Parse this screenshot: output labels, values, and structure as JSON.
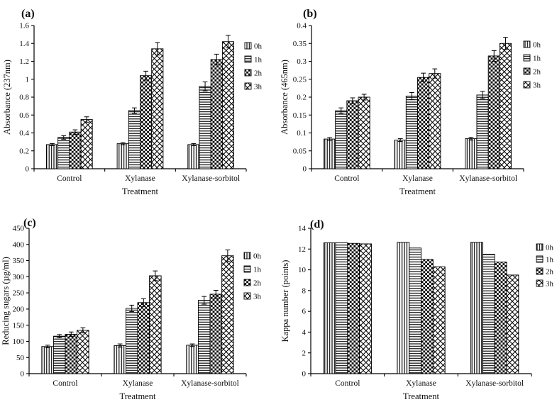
{
  "figure": {
    "background": "#ffffff",
    "text_color": "#0e0e0e",
    "bar_fill": "#ffffff",
    "bar_stroke": "#000000"
  },
  "chart_data": [
    {
      "type": "bar",
      "panel_label": "(a)",
      "xlabel": "Treatment",
      "ylabel": "Absorbance (237nm)",
      "ylim": [
        0,
        1.6
      ],
      "ytick_step": 0.2,
      "grid": false,
      "legend_position": "right",
      "error_bars": true,
      "categories": [
        "Control",
        "Xylanase",
        "Xylanase-sorbitol"
      ],
      "series": [
        {
          "name": "0h",
          "pattern": "vertical-stripes",
          "values": [
            0.27,
            0.28,
            0.27
          ],
          "errors": [
            0.012,
            0.012,
            0.012
          ]
        },
        {
          "name": "1h",
          "pattern": "horizontal-stripes",
          "values": [
            0.35,
            0.65,
            0.92
          ],
          "errors": [
            0.02,
            0.03,
            0.05
          ]
        },
        {
          "name": "2h",
          "pattern": "checkerboard",
          "values": [
            0.41,
            1.04,
            1.22
          ],
          "errors": [
            0.025,
            0.05,
            0.06
          ]
        },
        {
          "name": "3h",
          "pattern": "diagonal-crosshatch",
          "values": [
            0.55,
            1.34,
            1.42
          ],
          "errors": [
            0.03,
            0.07,
            0.07
          ]
        }
      ]
    },
    {
      "type": "bar",
      "panel_label": "(b)",
      "xlabel": "Treatment",
      "ylabel": "Absorbance (465nm)",
      "ylim": [
        0,
        0.4
      ],
      "ytick_step": 0.05,
      "grid": false,
      "legend_position": "right",
      "error_bars": true,
      "categories": [
        "Control",
        "Xylanase",
        "Xylanase-sorbitol"
      ],
      "series": [
        {
          "name": "0h",
          "pattern": "vertical-stripes",
          "values": [
            0.083,
            0.08,
            0.084
          ],
          "errors": [
            0.004,
            0.004,
            0.004
          ]
        },
        {
          "name": "1h",
          "pattern": "horizontal-stripes",
          "values": [
            0.162,
            0.203,
            0.206
          ],
          "errors": [
            0.008,
            0.01,
            0.01
          ]
        },
        {
          "name": "2h",
          "pattern": "checkerboard",
          "values": [
            0.19,
            0.255,
            0.315
          ],
          "errors": [
            0.008,
            0.012,
            0.015
          ]
        },
        {
          "name": "3h",
          "pattern": "diagonal-crosshatch",
          "values": [
            0.2,
            0.266,
            0.35
          ],
          "errors": [
            0.008,
            0.013,
            0.017
          ]
        }
      ]
    },
    {
      "type": "bar",
      "panel_label": "(c)",
      "xlabel": "Treatment",
      "ylabel": "Reducing sugars (µg/ml)",
      "ylim": [
        0,
        450
      ],
      "ytick_step": 50,
      "grid": false,
      "legend_position": "right",
      "error_bars": true,
      "categories": [
        "Control",
        "Xylanase",
        "Xylanase-sorbitol"
      ],
      "series": [
        {
          "name": "0h",
          "pattern": "vertical-stripes",
          "values": [
            84,
            87,
            88
          ],
          "errors": [
            4,
            5,
            4
          ]
        },
        {
          "name": "1h",
          "pattern": "horizontal-stripes",
          "values": [
            116,
            202,
            227
          ],
          "errors": [
            5,
            10,
            12
          ]
        },
        {
          "name": "2h",
          "pattern": "checkerboard",
          "values": [
            122,
            220,
            246
          ],
          "errors": [
            7,
            12,
            12
          ]
        },
        {
          "name": "3h",
          "pattern": "diagonal-crosshatch",
          "values": [
            134,
            303,
            365
          ],
          "errors": [
            8,
            15,
            18
          ]
        }
      ]
    },
    {
      "type": "bar",
      "panel_label": "(d)",
      "xlabel": "Treatment",
      "ylabel": "Kappa number (points)",
      "ylim": [
        0,
        14
      ],
      "ytick_step": 2,
      "grid": false,
      "legend_position": "right",
      "error_bars": false,
      "categories": [
        "Control",
        "Xylanase",
        "Xylanase-sorbitol"
      ],
      "series": [
        {
          "name": "0h",
          "pattern": "vertical-stripes",
          "values": [
            12.6,
            12.65,
            12.65
          ],
          "errors": null
        },
        {
          "name": "1h",
          "pattern": "horizontal-stripes",
          "values": [
            12.6,
            12.1,
            11.5
          ],
          "errors": null
        },
        {
          "name": "2h",
          "pattern": "checkerboard",
          "values": [
            12.55,
            11.0,
            10.75
          ],
          "errors": null
        },
        {
          "name": "3h",
          "pattern": "diagonal-crosshatch",
          "values": [
            12.5,
            10.3,
            9.5
          ],
          "errors": null
        }
      ]
    }
  ]
}
